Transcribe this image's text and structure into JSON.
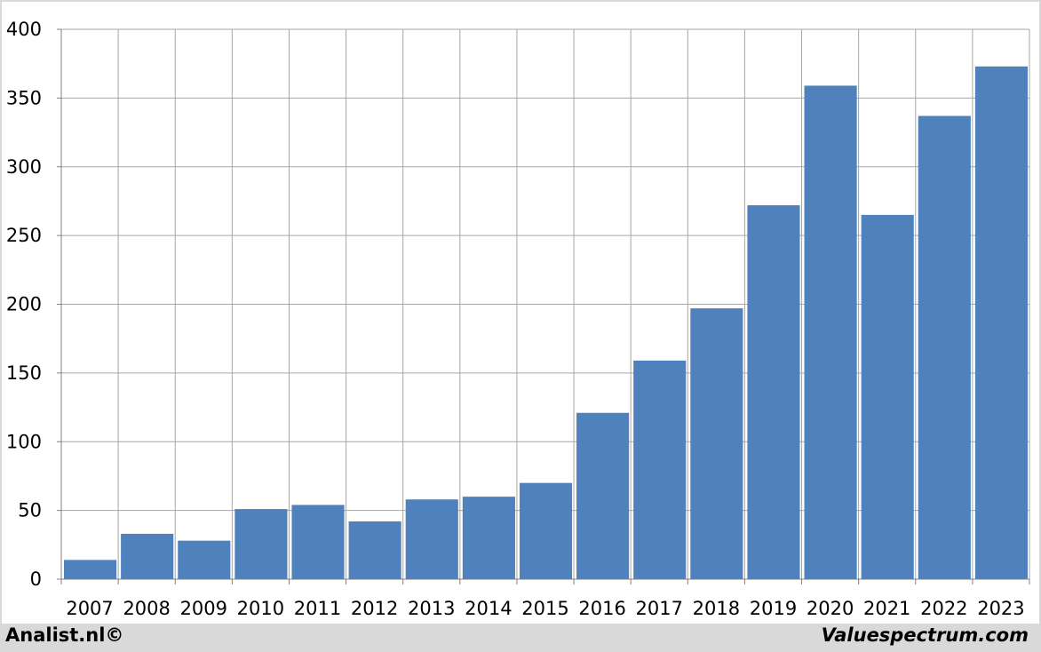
{
  "chart_data": {
    "type": "bar",
    "categories": [
      "2007",
      "2008",
      "2009",
      "2010",
      "2011",
      "2012",
      "2013",
      "2014",
      "2015",
      "2016",
      "2017",
      "2018",
      "2019",
      "2020",
      "2021",
      "2022",
      "2023"
    ],
    "values": [
      14,
      33,
      28,
      51,
      54,
      42,
      58,
      60,
      70,
      121,
      159,
      197,
      272,
      359,
      265,
      337,
      373
    ],
    "title": "",
    "xlabel": "",
    "ylabel": "",
    "ylim": [
      0,
      400
    ],
    "yticks": [
      0,
      50,
      100,
      150,
      200,
      250,
      300,
      350,
      400
    ],
    "grid": true,
    "bar_color": "#4f81bd",
    "grid_color": "#a6a6a6"
  },
  "footer": {
    "left": "Analist.nl©",
    "right": "Valuespectrum.com"
  }
}
